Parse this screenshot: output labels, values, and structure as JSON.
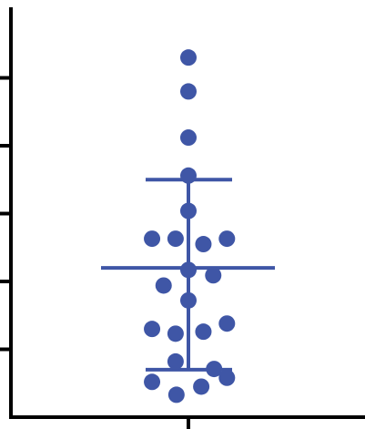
{
  "chart_data": {
    "type": "scatter",
    "title": "",
    "xlabel": "",
    "ylabel": "",
    "categories": [
      ""
    ],
    "ylim": [
      0,
      6
    ],
    "y_ticks": [
      1,
      2,
      3,
      4,
      5
    ],
    "grid": false,
    "legend": "none",
    "colors": {
      "points": "#3f56a6",
      "axis": "#000000",
      "summary": "#3f56a6"
    },
    "summary": {
      "mean": 2.2,
      "sd_low": 0.7,
      "sd_high": 3.5
    },
    "points": [
      {
        "x": 0.0,
        "y": 5.3
      },
      {
        "x": 0.0,
        "y": 4.8
      },
      {
        "x": 0.0,
        "y": 4.12
      },
      {
        "x": 0.0,
        "y": 3.56
      },
      {
        "x": 0.0,
        "y": 3.04
      },
      {
        "x": -0.85,
        "y": 2.63
      },
      {
        "x": -0.3,
        "y": 2.63
      },
      {
        "x": 0.35,
        "y": 2.55
      },
      {
        "x": 0.9,
        "y": 2.63
      },
      {
        "x": 0.0,
        "y": 2.17
      },
      {
        "x": 0.58,
        "y": 2.09
      },
      {
        "x": -0.58,
        "y": 1.94
      },
      {
        "x": 0.0,
        "y": 1.72
      },
      {
        "x": -0.85,
        "y": 1.3
      },
      {
        "x": -0.3,
        "y": 1.23
      },
      {
        "x": 0.35,
        "y": 1.26
      },
      {
        "x": 0.9,
        "y": 1.38
      },
      {
        "x": -0.3,
        "y": 0.82
      },
      {
        "x": 0.6,
        "y": 0.71
      },
      {
        "x": -0.85,
        "y": 0.52
      },
      {
        "x": 0.3,
        "y": 0.45
      },
      {
        "x": 0.9,
        "y": 0.58
      },
      {
        "x": -0.28,
        "y": 0.33
      }
    ]
  }
}
